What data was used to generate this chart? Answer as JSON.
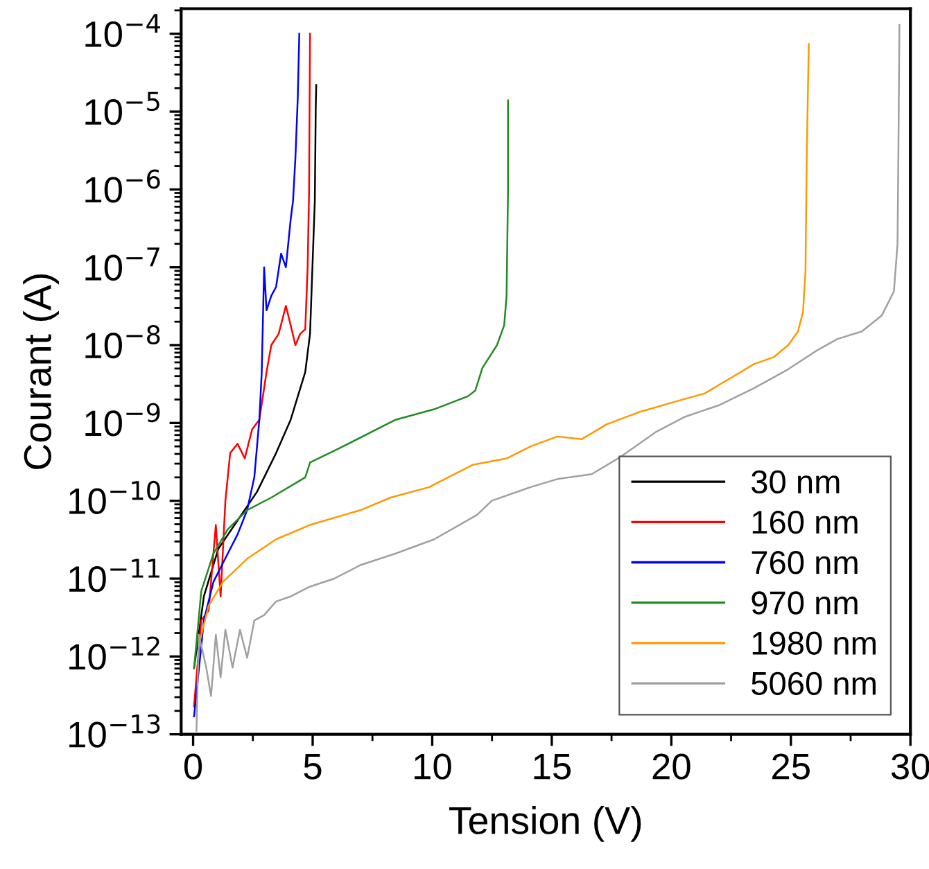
{
  "chart_data": {
    "type": "line",
    "xlabel": "Tension (V)",
    "ylabel": "Courant (A)",
    "log": "y",
    "xlim": [
      -0.5,
      30
    ],
    "xticks": [
      0,
      5,
      10,
      15,
      20,
      25,
      30
    ],
    "ylim": [
      1e-13,
      0.00021
    ],
    "yticks": [
      {
        "value": 1e-13,
        "label": "10$^{−13}$"
      },
      {
        "value": 1e-12,
        "label": "10$^{−12}$"
      },
      {
        "value": 1e-11,
        "label": "10$^{−11}$"
      },
      {
        "value": 1e-10,
        "label": "10$^{−10}$"
      },
      {
        "value": 1e-09,
        "label": "10$^{−9}$"
      },
      {
        "value": 1e-08,
        "label": "10$^{−8}$"
      },
      {
        "value": 1e-07,
        "label": "10$^{−7}$"
      },
      {
        "value": 1e-06,
        "label": "10$^{−6}$"
      },
      {
        "value": 1e-05,
        "label": "10$^{−5}$"
      },
      {
        "value": 0.0001,
        "label": "10$^{−4}$"
      }
    ],
    "grid": false,
    "legend": "bottom right",
    "marker": "none",
    "line_style": "solid",
    "series": [
      {
        "name": "30 nm",
        "color": "#000000",
        "x": [
          0.04,
          0.45,
          1.05,
          1.86,
          2.67,
          3.47,
          4.08,
          4.69,
          4.89,
          4.99,
          5.09,
          5.13,
          5.15
        ],
        "values": [
          7.1e-13,
          5.9e-12,
          2.4e-11,
          5.6e-11,
          1.3e-10,
          4.1e-10,
          1.1e-09,
          4.5e-09,
          1.4e-08,
          1e-07,
          7.1e-07,
          1.2e-05,
          2.2e-05
        ]
      },
      {
        "name": "160 nm",
        "color": "#ff0000",
        "x": [
          0.04,
          0.34,
          0.65,
          0.95,
          1.15,
          1.35,
          1.55,
          1.86,
          2.16,
          2.47,
          2.77,
          3.07,
          3.27,
          3.58,
          3.88,
          4.08,
          4.28,
          4.48,
          4.69,
          4.79,
          4.85,
          4.89
        ],
        "values": [
          2.3e-13,
          2.9e-12,
          3.9e-12,
          4.9e-11,
          5.9e-12,
          1e-10,
          4.1e-10,
          5.4e-10,
          3.5e-10,
          8.3e-10,
          1.1e-09,
          4.5e-09,
          1e-08,
          1.4e-08,
          3.2e-08,
          1.8e-08,
          1e-08,
          1.4e-08,
          1.6e-08,
          1e-07,
          9.5e-07,
          0.0001
        ]
      },
      {
        "name": "760 nm",
        "color": "#0000ff",
        "x": [
          0.04,
          0.45,
          0.85,
          1.45,
          1.86,
          2.26,
          2.56,
          2.77,
          2.87,
          2.97,
          3.07,
          3.27,
          3.47,
          3.68,
          3.88,
          4.08,
          4.18,
          4.28,
          4.38,
          4.44
        ],
        "values": [
          1.7e-13,
          2.9e-12,
          9.1e-12,
          2.1e-11,
          3.7e-11,
          7.6e-11,
          2e-10,
          1.1e-09,
          4.5e-09,
          1e-07,
          2.8e-08,
          4.3e-08,
          5.6e-08,
          1.5e-07,
          1e-07,
          4.1e-07,
          7.2e-07,
          2.6e-06,
          1.6e-05,
          0.0001
        ]
      },
      {
        "name": "970 nm",
        "color": "#228b22",
        "x": [
          0.04,
          0.34,
          0.85,
          1.45,
          2.26,
          3.27,
          4.69,
          4.89,
          6.1,
          8.47,
          10.08,
          11.49,
          11.8,
          12.1,
          12.71,
          13.01,
          13.11,
          13.17,
          13.17
        ],
        "values": [
          7.1e-13,
          6.9e-12,
          2.1e-11,
          4.3e-11,
          7.6e-11,
          1.1e-10,
          2e-10,
          3.1e-10,
          4.7e-10,
          1.1e-09,
          1.5e-09,
          2.2e-09,
          2.6e-09,
          5.1e-09,
          1e-08,
          1.8e-08,
          4.3e-08,
          9.5e-07,
          1.4e-05
        ]
      },
      {
        "name": "1980 nm",
        "color": "#ff9900",
        "x": [
          0.24,
          0.65,
          1.25,
          2.26,
          3.47,
          4.89,
          7.01,
          8.26,
          9.88,
          11.7,
          13.11,
          14.12,
          15.23,
          16.26,
          17.29,
          18.72,
          19.96,
          21.4,
          22.43,
          23.46,
          24.28,
          24.89,
          25.3,
          25.51,
          25.61,
          25.67,
          25.75
        ],
        "values": [
          1.4e-12,
          4.5e-12,
          9.1e-12,
          1.8e-11,
          3.2e-11,
          4.9e-11,
          7.6e-11,
          1.1e-10,
          1.5e-10,
          2.9e-10,
          3.5e-10,
          5e-10,
          6.7e-10,
          6.2e-10,
          9.6e-10,
          1.4e-09,
          1.8e-09,
          2.4e-09,
          3.7e-09,
          5.7e-09,
          7e-09,
          1e-08,
          1.5e-08,
          2.7e-08,
          8.7e-08,
          3.6e-06,
          7.4e-05
        ]
      },
      {
        "name": "5060 nm",
        "color": "#a0a0a0",
        "x": [
          0.14,
          0.24,
          0.55,
          0.75,
          0.95,
          1.15,
          1.35,
          1.65,
          1.96,
          2.26,
          2.56,
          2.97,
          3.47,
          4.08,
          4.89,
          5.9,
          7.01,
          8.47,
          10.08,
          11.88,
          12.49,
          14.12,
          15.23,
          16.67,
          17.9,
          19.34,
          20.57,
          22.02,
          23.46,
          24.89,
          26.13,
          26.95,
          27.97,
          28.8,
          29.31,
          29.46,
          29.5,
          29.54
        ],
        "values": [
          1.1e-13,
          1.9e-12,
          7.2e-13,
          3.1e-13,
          1.9e-12,
          5.4e-13,
          2.2e-12,
          7.2e-13,
          2.2e-12,
          9.6e-13,
          2.9e-12,
          3.4e-12,
          5.1e-12,
          5.9e-12,
          7.9e-12,
          1e-11,
          1.5e-11,
          2.1e-11,
          3.2e-11,
          6.6e-11,
          1e-10,
          1.5e-10,
          1.9e-10,
          2.2e-10,
          3.7e-10,
          7.6e-10,
          1.2e-09,
          1.7e-09,
          2.8e-09,
          4.9e-09,
          8.7e-09,
          1.2e-08,
          1.5e-08,
          2.4e-08,
          4.9e-08,
          2e-07,
          3.6e-06,
          0.00013
        ]
      }
    ]
  }
}
